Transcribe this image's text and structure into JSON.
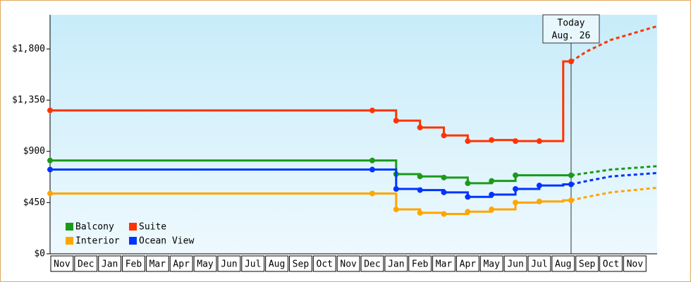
{
  "chart_data": {
    "type": "line",
    "categories": [
      "Nov",
      "Dec",
      "Jan",
      "Feb",
      "Mar",
      "Apr",
      "May",
      "Jun",
      "Jul",
      "Aug",
      "Sep",
      "Oct",
      "Nov",
      "Dec",
      "Jan",
      "Feb",
      "Mar",
      "Apr",
      "May",
      "Jun",
      "Jul",
      "Aug",
      "Sep",
      "Oct",
      "Nov"
    ],
    "ylim": [
      0,
      2100
    ],
    "yticks": [
      {
        "value": 0,
        "label": "$0"
      },
      {
        "value": 450,
        "label": "$450"
      },
      {
        "value": 900,
        "label": "$900"
      },
      {
        "value": 1350,
        "label": "$1,350"
      },
      {
        "value": 1800,
        "label": "$1,800"
      }
    ],
    "annotation": [
      "Today",
      "Aug. 26"
    ],
    "legend": "lower left",
    "series": [
      {
        "name": "Balcony",
        "color": "#1a9a1a",
        "values": [
          820,
          820,
          820,
          820,
          820,
          820,
          820,
          820,
          820,
          820,
          820,
          820,
          820,
          820,
          700,
          680,
          670,
          620,
          640,
          690,
          690,
          690,
          null,
          null,
          null
        ],
        "forecast": [
          null,
          null,
          null,
          null,
          null,
          null,
          null,
          null,
          null,
          null,
          null,
          null,
          null,
          null,
          null,
          null,
          null,
          null,
          null,
          null,
          null,
          690,
          710,
          740,
          770
        ]
      },
      {
        "name": "Suite",
        "color": "#ff3300",
        "values": [
          1260,
          1260,
          1260,
          1260,
          1260,
          1260,
          1260,
          1260,
          1260,
          1260,
          1260,
          1260,
          1260,
          1260,
          1170,
          1110,
          1040,
          990,
          1000,
          990,
          990,
          1690,
          null,
          null,
          null
        ],
        "forecast": [
          null,
          null,
          null,
          null,
          null,
          null,
          null,
          null,
          null,
          null,
          null,
          null,
          null,
          null,
          null,
          null,
          null,
          null,
          null,
          null,
          null,
          1690,
          1780,
          1880,
          2000
        ]
      },
      {
        "name": "Interior",
        "color": "#ffa500",
        "values": [
          530,
          530,
          530,
          530,
          530,
          530,
          530,
          530,
          530,
          530,
          530,
          530,
          530,
          530,
          390,
          360,
          350,
          370,
          390,
          450,
          460,
          470,
          null,
          null,
          null
        ],
        "forecast": [
          null,
          null,
          null,
          null,
          null,
          null,
          null,
          null,
          null,
          null,
          null,
          null,
          null,
          null,
          null,
          null,
          null,
          null,
          null,
          null,
          null,
          470,
          500,
          540,
          580
        ]
      },
      {
        "name": "Ocean View",
        "color": "#0033ff",
        "values": [
          740,
          740,
          740,
          740,
          740,
          740,
          740,
          740,
          740,
          740,
          740,
          740,
          740,
          740,
          570,
          560,
          540,
          500,
          520,
          570,
          600,
          610,
          null,
          null,
          null
        ],
        "forecast": [
          null,
          null,
          null,
          null,
          null,
          null,
          null,
          null,
          null,
          null,
          null,
          null,
          null,
          null,
          null,
          null,
          null,
          null,
          null,
          null,
          null,
          610,
          640,
          680,
          710
        ]
      }
    ]
  }
}
